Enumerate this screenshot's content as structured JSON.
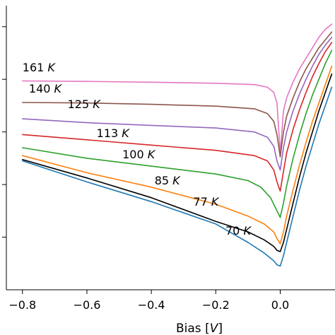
{
  "chart_data": {
    "type": "line",
    "title": "",
    "xlabel": "Bias [V]",
    "ylabel": "",
    "xlim": [
      -0.85,
      0.17
    ],
    "ylim": [
      0,
      10.8
    ],
    "x_ticks": [
      -0.8,
      -0.6,
      -0.4,
      -0.2,
      0.0
    ],
    "x_tick_labels": [
      "−0.8",
      "−0.6",
      "−0.4",
      "−0.2",
      "0.0"
    ],
    "y_ticks": [
      2,
      4,
      6,
      8,
      10
    ],
    "y_tick_labels": [
      "",
      "",
      "",
      "",
      ""
    ],
    "grid": false,
    "legend": "none",
    "series": [
      {
        "name": "161 K",
        "color": "#e377c2",
        "label_x": -0.8,
        "label_y": 8.3,
        "x": [
          -0.8,
          -0.6,
          -0.4,
          -0.2,
          -0.08,
          -0.04,
          -0.02,
          -0.01,
          0.0,
          0.01,
          0.02,
          0.04,
          0.06,
          0.08,
          0.1,
          0.12,
          0.14,
          0.16
        ],
        "y": [
          7.94,
          7.92,
          7.89,
          7.85,
          7.8,
          7.7,
          7.5,
          7.1,
          5.2,
          6.8,
          7.3,
          7.9,
          8.4,
          8.8,
          9.2,
          9.6,
          9.9,
          10.1
        ]
      },
      {
        "name": "140 K",
        "color": "#8c564b",
        "label_x": -0.78,
        "label_y": 7.5,
        "x": [
          -0.8,
          -0.6,
          -0.4,
          -0.2,
          -0.08,
          -0.04,
          -0.02,
          -0.01,
          0.0,
          0.01,
          0.02,
          0.04,
          0.06,
          0.08,
          0.1,
          0.12,
          0.14,
          0.16
        ],
        "y": [
          7.12,
          7.1,
          7.05,
          6.98,
          6.88,
          6.7,
          6.4,
          5.9,
          5.05,
          6.0,
          6.6,
          7.3,
          7.9,
          8.4,
          8.8,
          9.2,
          9.5,
          9.8
        ]
      },
      {
        "name": "125 K",
        "color": "#9467bd",
        "label_x": -0.66,
        "label_y": 6.9,
        "x": [
          -0.8,
          -0.6,
          -0.4,
          -0.2,
          -0.08,
          -0.04,
          -0.02,
          -0.01,
          0.0,
          0.01,
          0.02,
          0.04,
          0.06,
          0.08,
          0.1,
          0.12,
          0.14,
          0.16
        ],
        "y": [
          6.5,
          6.35,
          6.25,
          6.15,
          6.0,
          5.8,
          5.45,
          4.9,
          4.55,
          5.4,
          6.0,
          6.8,
          7.45,
          8.0,
          8.5,
          8.95,
          9.3,
          9.6
        ]
      },
      {
        "name": "113 K",
        "color": "#d62728",
        "label_x": -0.57,
        "label_y": 5.8,
        "x": [
          -0.8,
          -0.6,
          -0.4,
          -0.2,
          -0.08,
          -0.04,
          -0.02,
          -0.01,
          0.0,
          0.01,
          0.02,
          0.04,
          0.06,
          0.08,
          0.1,
          0.12,
          0.14,
          0.16
        ],
        "y": [
          5.9,
          5.7,
          5.5,
          5.3,
          5.1,
          4.9,
          4.55,
          4.1,
          3.75,
          4.5,
          5.2,
          6.1,
          6.85,
          7.5,
          8.1,
          8.6,
          9.05,
          9.4
        ]
      },
      {
        "name": "100 K",
        "color": "#2ca02c",
        "label_x": -0.49,
        "label_y": 5.0,
        "x": [
          -0.8,
          -0.6,
          -0.4,
          -0.2,
          -0.1,
          -0.06,
          -0.03,
          -0.01,
          0.0,
          0.01,
          0.02,
          0.04,
          0.06,
          0.08,
          0.1,
          0.12,
          0.14,
          0.16
        ],
        "y": [
          5.4,
          5.0,
          4.7,
          4.4,
          4.15,
          3.9,
          3.5,
          3.0,
          2.75,
          3.3,
          3.95,
          5.0,
          5.9,
          6.7,
          7.4,
          8.0,
          8.6,
          9.1
        ]
      },
      {
        "name": "85 K",
        "color": "#ff7f0e",
        "label_x": -0.39,
        "label_y": 4.0,
        "x": [
          -0.8,
          -0.6,
          -0.4,
          -0.2,
          -0.1,
          -0.05,
          -0.02,
          -0.01,
          0.0,
          0.01,
          0.02,
          0.04,
          0.06,
          0.08,
          0.1,
          0.12,
          0.14,
          0.16
        ],
        "y": [
          5.1,
          4.45,
          3.9,
          3.25,
          2.8,
          2.5,
          2.2,
          1.95,
          1.75,
          2.2,
          2.8,
          3.8,
          4.75,
          5.6,
          6.4,
          7.1,
          7.8,
          8.5
        ]
      },
      {
        "name": "77 K",
        "color": "#000000",
        "label_x": -0.27,
        "label_y": 3.2,
        "x": [
          -0.8,
          -0.6,
          -0.4,
          -0.2,
          -0.1,
          -0.05,
          -0.02,
          -0.01,
          0.0,
          0.01,
          0.02,
          0.04,
          0.06,
          0.08,
          0.1,
          0.12,
          0.14,
          0.16
        ],
        "y": [
          4.95,
          4.25,
          3.5,
          2.6,
          2.2,
          1.9,
          1.65,
          1.5,
          1.45,
          1.8,
          2.3,
          3.3,
          4.3,
          5.2,
          6.0,
          6.8,
          7.5,
          8.2
        ]
      },
      {
        "name": "70 K",
        "color": "#1f77b4",
        "label_x": -0.17,
        "label_y": 2.1,
        "x": [
          -0.8,
          -0.6,
          -0.4,
          -0.2,
          -0.1,
          -0.05,
          -0.02,
          -0.01,
          0.0,
          0.01,
          0.02,
          0.04,
          0.06,
          0.08,
          0.1,
          0.12,
          0.14,
          0.16
        ],
        "y": [
          4.9,
          4.1,
          3.35,
          2.5,
          1.8,
          1.4,
          1.1,
          0.95,
          0.9,
          1.3,
          1.8,
          2.8,
          3.8,
          4.7,
          5.5,
          6.3,
          7.0,
          7.7
        ]
      }
    ]
  }
}
